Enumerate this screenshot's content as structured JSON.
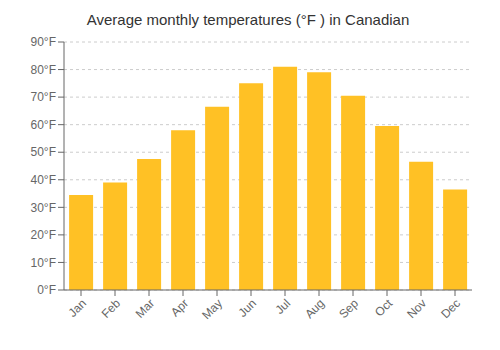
{
  "chart_data": {
    "type": "bar",
    "title": "Average monthly temperatures (°F ) in Canadian",
    "categories": [
      "Jan",
      "Feb",
      "Mar",
      "Apr",
      "May",
      "Jun",
      "Jul",
      "Aug",
      "Sep",
      "Oct",
      "Nov",
      "Dec"
    ],
    "values": [
      34.5,
      39.0,
      47.5,
      58.0,
      66.5,
      75.0,
      81.0,
      79.0,
      70.5,
      59.5,
      46.5,
      36.5
    ],
    "color": "#FFC125",
    "ylim": [
      0,
      90
    ],
    "yticks": [
      {
        "value": 0,
        "label": "0°F"
      },
      {
        "value": 10,
        "label": "10°F"
      },
      {
        "value": 20,
        "label": "20°F"
      },
      {
        "value": 30,
        "label": "30°F"
      },
      {
        "value": 40,
        "label": "40°F"
      },
      {
        "value": 50,
        "label": "50°F"
      },
      {
        "value": 60,
        "label": "60°F"
      },
      {
        "value": 70,
        "label": "70°F"
      },
      {
        "value": 80,
        "label": "80°F"
      },
      {
        "value": 90,
        "label": "90°F"
      }
    ],
    "grid": true
  }
}
